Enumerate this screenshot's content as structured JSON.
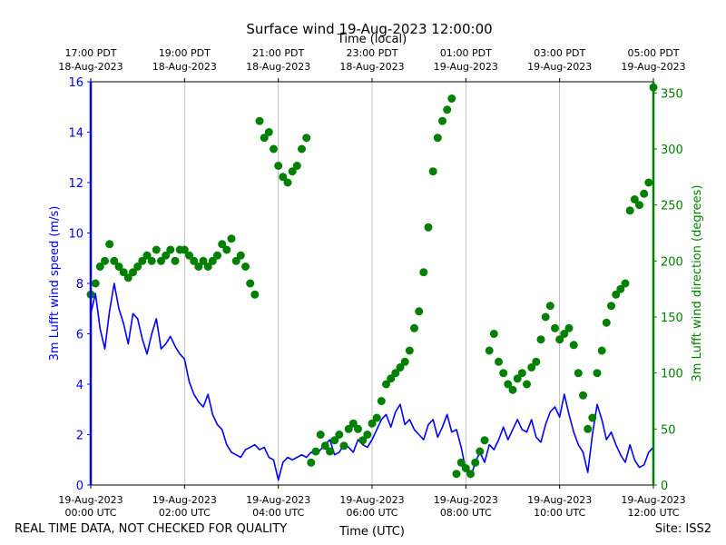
{
  "chart_data": {
    "type": "line",
    "title": "Surface wind 19-Aug-2023 12:00:00",
    "top_axis_label": "Time (local)",
    "xlabel": "Time (UTC)",
    "ylabel_left": "3m Lufft wind speed (m/s)",
    "ylabel_right": "3m Lufft wind direction (degrees)",
    "x_range_hours_utc": [
      0,
      12
    ],
    "ylim_left": [
      0,
      16
    ],
    "ylim_right": [
      0,
      360
    ],
    "grid": "vertical",
    "bottom_ticks": [
      {
        "h": 0,
        "line1": "19-Aug-2023",
        "line2": "00:00 UTC"
      },
      {
        "h": 2,
        "line1": "19-Aug-2023",
        "line2": "02:00 UTC"
      },
      {
        "h": 4,
        "line1": "19-Aug-2023",
        "line2": "04:00 UTC"
      },
      {
        "h": 6,
        "line1": "19-Aug-2023",
        "line2": "06:00 UTC"
      },
      {
        "h": 8,
        "line1": "19-Aug-2023",
        "line2": "08:00 UTC"
      },
      {
        "h": 10,
        "line1": "19-Aug-2023",
        "line2": "10:00 UTC"
      },
      {
        "h": 12,
        "line1": "19-Aug-2023",
        "line2": "12:00 UTC"
      }
    ],
    "top_ticks": [
      {
        "h": 0,
        "line1": "17:00 PDT",
        "line2": "18-Aug-2023"
      },
      {
        "h": 2,
        "line1": "19:00 PDT",
        "line2": "18-Aug-2023"
      },
      {
        "h": 4,
        "line1": "21:00 PDT",
        "line2": "18-Aug-2023"
      },
      {
        "h": 6,
        "line1": "23:00 PDT",
        "line2": "18-Aug-2023"
      },
      {
        "h": 8,
        "line1": "01:00 PDT",
        "line2": "19-Aug-2023"
      },
      {
        "h": 10,
        "line1": "03:00 PDT",
        "line2": "19-Aug-2023"
      },
      {
        "h": 12,
        "line1": "05:00 PDT",
        "line2": "19-Aug-2023"
      }
    ],
    "left_ticks": [
      0,
      2,
      4,
      6,
      8,
      10,
      12,
      14,
      16
    ],
    "right_ticks": [
      0,
      50,
      100,
      150,
      200,
      250,
      300,
      350
    ],
    "colors": {
      "speed": "#0000ff",
      "direction": "#008000",
      "grid": "#b0b0b0"
    },
    "speed_series": {
      "hours": [
        0.0,
        0.1,
        0.2,
        0.3,
        0.4,
        0.5,
        0.6,
        0.7,
        0.8,
        0.9,
        1.0,
        1.1,
        1.2,
        1.3,
        1.4,
        1.5,
        1.6,
        1.7,
        1.8,
        1.9,
        2.0,
        2.1,
        2.2,
        2.3,
        2.4,
        2.5,
        2.6,
        2.7,
        2.8,
        2.9,
        3.0,
        3.1,
        3.2,
        3.3,
        3.4,
        3.5,
        3.6,
        3.7,
        3.8,
        3.9,
        4.0,
        4.1,
        4.2,
        4.3,
        4.4,
        4.5,
        4.6,
        4.7,
        4.8,
        4.9,
        5.0,
        5.1,
        5.2,
        5.3,
        5.4,
        5.5,
        5.6,
        5.7,
        5.8,
        5.9,
        6.0,
        6.1,
        6.2,
        6.3,
        6.4,
        6.5,
        6.6,
        6.7,
        6.8,
        6.9,
        7.0,
        7.1,
        7.2,
        7.3,
        7.4,
        7.5,
        7.6,
        7.7,
        7.8,
        7.9,
        8.0,
        8.1,
        8.2,
        8.3,
        8.4,
        8.5,
        8.6,
        8.7,
        8.8,
        8.9,
        9.0,
        9.1,
        9.2,
        9.3,
        9.4,
        9.5,
        9.6,
        9.7,
        9.8,
        9.9,
        10.0,
        10.1,
        10.2,
        10.3,
        10.4,
        10.5,
        10.6,
        10.7,
        10.8,
        10.9,
        11.0,
        11.1,
        11.2,
        11.3,
        11.4,
        11.5,
        11.6,
        11.7,
        11.8,
        11.9,
        12.0
      ],
      "values": [
        6.8,
        7.6,
        6.2,
        5.4,
        6.9,
        8.0,
        7.0,
        6.4,
        5.6,
        6.8,
        6.6,
        5.8,
        5.2,
        6.0,
        6.6,
        5.4,
        5.6,
        5.9,
        5.5,
        5.2,
        5.0,
        4.1,
        3.6,
        3.3,
        3.1,
        3.6,
        2.8,
        2.4,
        2.2,
        1.6,
        1.3,
        1.2,
        1.1,
        1.4,
        1.5,
        1.6,
        1.4,
        1.5,
        1.1,
        1.0,
        0.2,
        0.9,
        1.1,
        1.0,
        1.1,
        1.2,
        1.1,
        1.3,
        1.2,
        1.4,
        1.6,
        1.8,
        1.2,
        1.3,
        1.6,
        1.5,
        1.3,
        1.8,
        1.6,
        1.5,
        1.8,
        2.2,
        2.6,
        2.8,
        2.3,
        2.9,
        3.2,
        2.4,
        2.6,
        2.2,
        2.0,
        1.8,
        2.4,
        2.6,
        1.9,
        2.3,
        2.8,
        2.1,
        2.2,
        1.5,
        0.6,
        0.3,
        0.9,
        1.3,
        0.9,
        1.6,
        1.4,
        1.8,
        2.3,
        1.8,
        2.2,
        2.6,
        2.2,
        2.1,
        2.6,
        1.9,
        1.7,
        2.4,
        2.9,
        3.1,
        2.7,
        3.6,
        2.8,
        2.1,
        1.6,
        1.3,
        0.5,
        2.0,
        3.2,
        2.6,
        1.8,
        2.1,
        1.6,
        1.2,
        0.9,
        1.6,
        1.0,
        0.7,
        0.8,
        1.3,
        1.5
      ]
    },
    "direction_series": {
      "hours": [
        0.0,
        0.1,
        0.2,
        0.3,
        0.4,
        0.5,
        0.6,
        0.7,
        0.8,
        0.9,
        1.0,
        1.1,
        1.2,
        1.3,
        1.4,
        1.5,
        1.6,
        1.7,
        1.8,
        1.9,
        2.0,
        2.1,
        2.2,
        2.3,
        2.4,
        2.5,
        2.6,
        2.7,
        2.8,
        2.9,
        3.0,
        3.1,
        3.2,
        3.3,
        3.4,
        3.5,
        3.6,
        3.7,
        3.8,
        3.9,
        4.0,
        4.1,
        4.2,
        4.3,
        4.4,
        4.5,
        4.6,
        4.7,
        4.8,
        4.9,
        5.0,
        5.1,
        5.2,
        5.3,
        5.4,
        5.5,
        5.6,
        5.7,
        5.8,
        5.9,
        6.0,
        6.1,
        6.2,
        6.3,
        6.4,
        6.5,
        6.6,
        6.7,
        6.8,
        6.9,
        7.0,
        7.1,
        7.2,
        7.3,
        7.4,
        7.5,
        7.6,
        7.7,
        7.8,
        7.9,
        8.0,
        8.1,
        8.2,
        8.3,
        8.4,
        8.5,
        8.6,
        8.7,
        8.8,
        8.9,
        9.0,
        9.1,
        9.2,
        9.3,
        9.4,
        9.5,
        9.6,
        9.7,
        9.8,
        9.9,
        10.0,
        10.1,
        10.2,
        10.3,
        10.4,
        10.5,
        10.6,
        10.7,
        10.8,
        10.9,
        11.0,
        11.1,
        11.2,
        11.3,
        11.4,
        11.5,
        11.6,
        11.7,
        11.8,
        11.9,
        12.0
      ],
      "values": [
        170,
        180,
        195,
        200,
        215,
        200,
        195,
        190,
        185,
        190,
        195,
        200,
        205,
        200,
        210,
        200,
        205,
        210,
        200,
        210,
        210,
        205,
        200,
        195,
        200,
        195,
        200,
        205,
        215,
        210,
        220,
        200,
        205,
        195,
        180,
        170,
        325,
        310,
        315,
        300,
        285,
        275,
        270,
        280,
        285,
        300,
        310,
        20,
        30,
        45,
        35,
        30,
        40,
        45,
        35,
        50,
        55,
        50,
        40,
        45,
        55,
        60,
        75,
        90,
        95,
        100,
        105,
        110,
        120,
        140,
        155,
        190,
        230,
        280,
        310,
        325,
        335,
        345,
        10,
        20,
        15,
        10,
        20,
        30,
        40,
        120,
        135,
        110,
        100,
        90,
        85,
        95,
        100,
        90,
        105,
        110,
        130,
        150,
        160,
        140,
        130,
        135,
        140,
        125,
        100,
        80,
        50,
        60,
        100,
        120,
        145,
        160,
        170,
        175,
        180,
        245,
        255,
        250,
        260,
        270,
        355
      ]
    }
  },
  "footer": {
    "quality_note": "REAL TIME DATA, NOT CHECKED FOR QUALITY",
    "site": "Site: ISS2"
  }
}
